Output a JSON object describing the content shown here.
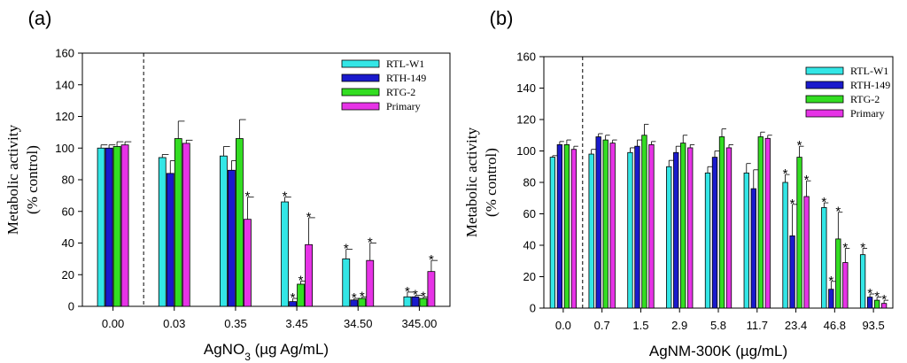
{
  "chart_data": [
    {
      "type": "bar",
      "panel_label": "(a)",
      "ylabel_lines": [
        "Metabolic activity",
        "(% control)"
      ],
      "xlabel_main": "AgNO",
      "xlabel_sub": "3",
      "xlabel_rest": " (µg Ag/mL)",
      "ylim": [
        0,
        160
      ],
      "yticks": [
        "0",
        "20",
        "40",
        "60",
        "80",
        "100",
        "120",
        "140",
        "160"
      ],
      "categories": [
        "0.00",
        "0.03",
        "0.35",
        "3.45",
        "34.50",
        "345.00"
      ],
      "legend_placement": "top-right",
      "series": [
        {
          "name": "RTL-W1",
          "color": "#33e6e6",
          "values": [
            100,
            94,
            95,
            66,
            30,
            6
          ],
          "errors": [
            2,
            2,
            6,
            3,
            6,
            3
          ],
          "significant": [
            false,
            false,
            false,
            true,
            true,
            true
          ]
        },
        {
          "name": "RTH-149",
          "color": "#1a1acc",
          "values": [
            100,
            84,
            86,
            3,
            4,
            6
          ],
          "errors": [
            2,
            8,
            6,
            2,
            1,
            1
          ],
          "significant": [
            false,
            false,
            false,
            true,
            true,
            true
          ]
        },
        {
          "name": "RTG-2",
          "color": "#33dd22",
          "values": [
            101,
            106,
            106,
            14,
            5,
            5
          ],
          "errors": [
            3,
            11,
            12,
            2,
            1,
            1
          ],
          "significant": [
            false,
            false,
            false,
            true,
            true,
            true
          ]
        },
        {
          "name": "Primary",
          "color": "#e633e6",
          "values": [
            102,
            103,
            55,
            39,
            29,
            22
          ],
          "errors": [
            2,
            2,
            14,
            17,
            11,
            7
          ],
          "significant": [
            false,
            false,
            true,
            true,
            true,
            true
          ]
        }
      ]
    },
    {
      "type": "bar",
      "panel_label": "(b)",
      "ylabel_lines": [
        "Metabolic activity",
        "(% control)"
      ],
      "xlabel_main": "AgNM-300K (µg/mL)",
      "xlabel_sub": "",
      "xlabel_rest": "",
      "ylim": [
        0,
        160
      ],
      "yticks": [
        "0",
        "20",
        "40",
        "60",
        "80",
        "100",
        "120",
        "140",
        "160"
      ],
      "categories": [
        "0.0",
        "0.7",
        "1.5",
        "2.9",
        "5.8",
        "11.7",
        "23.4",
        "46.8",
        "93.5"
      ],
      "legend_placement": "top-right",
      "series": [
        {
          "name": "RTL-W1",
          "color": "#33e6e6",
          "values": [
            96,
            98,
            99,
            90,
            86,
            86,
            80,
            64,
            34
          ],
          "errors": [
            1,
            3,
            3,
            4,
            4,
            6,
            5,
            3,
            4
          ],
          "significant": [
            false,
            false,
            false,
            false,
            false,
            false,
            true,
            true,
            true
          ]
        },
        {
          "name": "RTH-149",
          "color": "#1a1acc",
          "values": [
            104,
            109,
            103,
            99,
            96,
            76,
            46,
            12,
            7
          ],
          "errors": [
            2,
            2,
            4,
            4,
            4,
            12,
            20,
            5,
            2
          ],
          "significant": [
            false,
            false,
            false,
            false,
            false,
            false,
            true,
            true,
            true
          ]
        },
        {
          "name": "RTG-2",
          "color": "#33dd22",
          "values": [
            104,
            107,
            110,
            105,
            109,
            109,
            96,
            44,
            5
          ],
          "errors": [
            3,
            3,
            7,
            5,
            5,
            3,
            7,
            17,
            2
          ],
          "significant": [
            false,
            false,
            false,
            false,
            false,
            false,
            true,
            true,
            true
          ]
        },
        {
          "name": "Primary",
          "color": "#e633e6",
          "values": [
            101,
            105,
            104,
            102,
            102,
            108,
            71,
            29,
            3
          ],
          "errors": [
            2,
            2,
            2,
            2,
            2,
            2,
            10,
            9,
            2
          ],
          "significant": [
            false,
            false,
            false,
            false,
            false,
            false,
            true,
            true,
            true
          ]
        }
      ]
    }
  ]
}
